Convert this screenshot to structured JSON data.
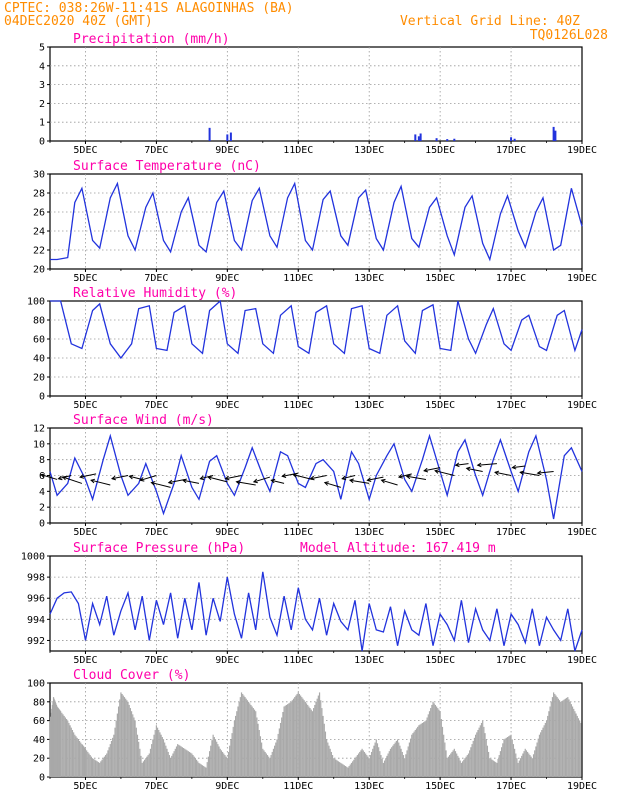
{
  "header": {
    "line1_left": "CPTEC:  038:26W-11:41S  ALAGOINHAS (BA)",
    "line2_left": "04DEC2020 40Z (GMT)",
    "line1_right": "Vertical Grid Line: 40Z",
    "line2_right": "TQ0126L028"
  },
  "colors": {
    "header": "#ff8c00",
    "title": "#ff00aa",
    "line": "#2233dd",
    "cloud": "#a9a9a9",
    "arrow": "#000000"
  },
  "x_ticks": [
    "5DEC",
    "7DEC",
    "9DEC",
    "11DEC",
    "13DEC",
    "15DEC",
    "17DEC",
    "19DEC"
  ],
  "chart_data": [
    {
      "type": "bar",
      "title": "Precipitation (mm/h)",
      "ylim": [
        0,
        5
      ],
      "yticks": [
        "0",
        "1",
        "2",
        "3",
        "4",
        "5"
      ],
      "grid": true,
      "x_start": 4.0,
      "x_end": 19.0,
      "bars": [
        {
          "x": 8.5,
          "value": 0.7
        },
        {
          "x": 9.0,
          "value": 0.35
        },
        {
          "x": 9.1,
          "value": 0.45
        },
        {
          "x": 14.3,
          "value": 0.35
        },
        {
          "x": 14.4,
          "value": 0.25
        },
        {
          "x": 14.45,
          "value": 0.4
        },
        {
          "x": 14.9,
          "value": 0.15
        },
        {
          "x": 15.2,
          "value": 0.1
        },
        {
          "x": 15.4,
          "value": 0.12
        },
        {
          "x": 17.0,
          "value": 0.2
        },
        {
          "x": 17.1,
          "value": 0.12
        },
        {
          "x": 18.2,
          "value": 0.75
        },
        {
          "x": 18.25,
          "value": 0.55
        }
      ]
    },
    {
      "type": "line",
      "title": "Surface Temperature (nC)",
      "ylim": [
        20,
        30
      ],
      "yticks": [
        "20",
        "22",
        "24",
        "26",
        "28",
        "30"
      ],
      "grid": true,
      "x_start": 4.0,
      "x_end": 19.0,
      "x": [
        4.0,
        4.2,
        4.5,
        4.7,
        4.9,
        5.2,
        5.4,
        5.7,
        5.9,
        6.2,
        6.4,
        6.7,
        6.9,
        7.2,
        7.4,
        7.7,
        7.9,
        8.2,
        8.4,
        8.7,
        8.9,
        9.2,
        9.4,
        9.7,
        9.9,
        10.2,
        10.4,
        10.7,
        10.9,
        11.2,
        11.4,
        11.7,
        11.9,
        12.2,
        12.4,
        12.7,
        12.9,
        13.2,
        13.4,
        13.7,
        13.9,
        14.2,
        14.4,
        14.7,
        14.9,
        15.2,
        15.4,
        15.7,
        15.9,
        16.2,
        16.4,
        16.7,
        16.9,
        17.2,
        17.4,
        17.7,
        17.9,
        18.2,
        18.4,
        18.7,
        19.0
      ],
      "y": [
        21.0,
        21.0,
        21.2,
        27.0,
        28.5,
        23.0,
        22.2,
        27.5,
        29.0,
        23.5,
        22.0,
        26.5,
        28.0,
        23.0,
        21.8,
        26.0,
        27.5,
        22.5,
        21.8,
        27.0,
        28.2,
        23.0,
        22.0,
        27.2,
        28.5,
        23.5,
        22.3,
        27.5,
        29.0,
        23.0,
        22.0,
        27.3,
        28.2,
        23.5,
        22.5,
        27.5,
        28.3,
        23.2,
        22.0,
        27.0,
        28.7,
        23.2,
        22.3,
        26.5,
        27.5,
        23.5,
        21.5,
        26.5,
        27.7,
        22.7,
        21.0,
        25.8,
        27.7,
        24.0,
        22.3,
        26.0,
        27.5,
        22.0,
        22.5,
        28.5,
        24.5
      ]
    },
    {
      "type": "line",
      "title": "Relative Humidity (%)",
      "ylim": [
        0,
        100
      ],
      "yticks": [
        "0",
        "20",
        "40",
        "60",
        "80",
        "100"
      ],
      "grid": true,
      "x_start": 4.0,
      "x_end": 19.0,
      "x": [
        4.0,
        4.3,
        4.6,
        4.9,
        5.2,
        5.4,
        5.7,
        6.0,
        6.3,
        6.5,
        6.8,
        7.0,
        7.3,
        7.5,
        7.8,
        8.0,
        8.3,
        8.5,
        8.8,
        9.0,
        9.3,
        9.5,
        9.8,
        10.0,
        10.3,
        10.5,
        10.8,
        11.0,
        11.3,
        11.5,
        11.8,
        12.0,
        12.3,
        12.5,
        12.8,
        13.0,
        13.3,
        13.5,
        13.8,
        14.0,
        14.3,
        14.5,
        14.8,
        15.0,
        15.3,
        15.5,
        15.8,
        16.0,
        16.3,
        16.5,
        16.8,
        17.0,
        17.3,
        17.5,
        17.8,
        18.0,
        18.3,
        18.5,
        18.8,
        19.0
      ],
      "y": [
        100,
        100,
        55,
        50,
        90,
        97,
        55,
        40,
        55,
        92,
        95,
        50,
        48,
        88,
        95,
        55,
        45,
        90,
        100,
        55,
        45,
        90,
        92,
        55,
        45,
        85,
        95,
        52,
        45,
        88,
        95,
        55,
        45,
        92,
        95,
        50,
        45,
        85,
        95,
        58,
        45,
        90,
        96,
        50,
        48,
        100,
        60,
        45,
        75,
        92,
        55,
        48,
        80,
        85,
        52,
        48,
        85,
        90,
        48,
        70
      ]
    },
    {
      "type": "line",
      "title": "Surface Wind (m/s)",
      "ylim": [
        0,
        12
      ],
      "yticks": [
        "0",
        "2",
        "4",
        "6",
        "8",
        "10",
        "12"
      ],
      "grid": true,
      "x_start": 4.0,
      "x_end": 19.0,
      "x": [
        4.0,
        4.2,
        4.5,
        4.7,
        5.0,
        5.2,
        5.5,
        5.7,
        6.0,
        6.2,
        6.5,
        6.7,
        7.0,
        7.2,
        7.5,
        7.7,
        8.0,
        8.2,
        8.5,
        8.7,
        9.0,
        9.2,
        9.5,
        9.7,
        10.0,
        10.2,
        10.5,
        10.7,
        11.0,
        11.2,
        11.5,
        11.7,
        12.0,
        12.2,
        12.5,
        12.7,
        13.0,
        13.2,
        13.5,
        13.7,
        14.0,
        14.2,
        14.5,
        14.7,
        15.0,
        15.2,
        15.5,
        15.7,
        16.0,
        16.2,
        16.5,
        16.7,
        17.0,
        17.2,
        17.5,
        17.7,
        18.0,
        18.2,
        18.5,
        18.7,
        19.0
      ],
      "y": [
        6.5,
        3.5,
        5.0,
        8.2,
        5.5,
        3.0,
        8.0,
        11.0,
        6.0,
        3.5,
        5.0,
        7.5,
        4.0,
        1.2,
        5.0,
        8.5,
        4.5,
        3.0,
        7.8,
        8.5,
        5.0,
        3.5,
        7.0,
        9.5,
        6.0,
        4.0,
        9.0,
        8.5,
        5.0,
        4.5,
        7.5,
        8.0,
        6.5,
        3.0,
        9.0,
        7.5,
        3.0,
        6.0,
        8.5,
        10.0,
        5.5,
        4.0,
        8.0,
        11.0,
        6.5,
        3.5,
        9.0,
        10.5,
        6.0,
        3.5,
        8.0,
        10.5,
        6.5,
        4.0,
        9.0,
        11.0,
        5.5,
        0.5,
        8.5,
        9.5,
        6.5
      ],
      "arrows_x": [
        4.2,
        4.6,
        4.9,
        5.3,
        5.7,
        6.2,
        6.6,
        7.0,
        7.4,
        7.8,
        8.2,
        8.6,
        9.0,
        9.4,
        9.8,
        10.2,
        10.6,
        11.0,
        11.4,
        11.8,
        12.2,
        12.6,
        13.0,
        13.4,
        13.8,
        14.2,
        14.6,
        15.0,
        15.4,
        15.8,
        16.2,
        16.6,
        17.0,
        17.4,
        17.8,
        18.2
      ],
      "arrows_y": [
        5.5,
        6.0,
        5.0,
        6.2,
        4.8,
        6.0,
        5.5,
        6.0,
        4.5,
        5.5,
        5.0,
        6.0,
        5.2,
        6.0,
        4.8,
        5.8,
        5.0,
        6.3,
        5.5,
        6.0,
        4.5,
        6.0,
        5.0,
        5.8,
        4.8,
        6.2,
        5.5,
        7.0,
        6.0,
        7.5,
        6.5,
        7.5,
        6.0,
        7.2,
        6.0,
        6.5
      ],
      "arrows_u": [
        -5,
        -4,
        -6,
        -5,
        -6,
        -5,
        -4,
        -5,
        -6,
        -5,
        -5,
        -4,
        -6,
        -5,
        -6,
        -5,
        -4,
        -5,
        -6,
        -5,
        -5,
        -4,
        -6,
        -5,
        -5,
        -4,
        -6,
        -5,
        -6,
        -4,
        -5,
        -6,
        -5,
        -4,
        -6,
        -5
      ],
      "arrows_v": [
        1.5,
        -1,
        2,
        -1,
        1.5,
        -1,
        1,
        -1.5,
        1.5,
        -1,
        1,
        -1,
        1.5,
        -1,
        1,
        -1.5,
        1,
        -1,
        1.5,
        -1,
        1.5,
        -1,
        1,
        -1,
        1.5,
        -1,
        1,
        -1,
        1.5,
        -0.5,
        1,
        -0.5,
        1,
        -0.5,
        1,
        -0.5
      ]
    },
    {
      "type": "line",
      "title": "Surface Pressure (hPa)",
      "annotation": "Model Altitude: 167.419 m",
      "ylim": [
        991,
        1000
      ],
      "yticks": [
        "992",
        "994",
        "996",
        "998",
        "1000"
      ],
      "ytick_values": [
        992,
        994,
        996,
        998,
        1000
      ],
      "grid": true,
      "x_start": 4.0,
      "x_end": 19.0,
      "x": [
        4.0,
        4.2,
        4.4,
        4.6,
        4.8,
        5.0,
        5.2,
        5.4,
        5.6,
        5.8,
        6.0,
        6.2,
        6.4,
        6.6,
        6.8,
        7.0,
        7.2,
        7.4,
        7.6,
        7.8,
        8.0,
        8.2,
        8.4,
        8.6,
        8.8,
        9.0,
        9.2,
        9.4,
        9.6,
        9.8,
        10.0,
        10.2,
        10.4,
        10.6,
        10.8,
        11.0,
        11.2,
        11.4,
        11.6,
        11.8,
        12.0,
        12.2,
        12.4,
        12.6,
        12.8,
        13.0,
        13.2,
        13.4,
        13.6,
        13.8,
        14.0,
        14.2,
        14.4,
        14.6,
        14.8,
        15.0,
        15.2,
        15.4,
        15.6,
        15.8,
        16.0,
        16.2,
        16.4,
        16.6,
        16.8,
        17.0,
        17.2,
        17.4,
        17.6,
        17.8,
        18.0,
        18.2,
        18.4,
        18.6,
        18.8,
        19.0
      ],
      "y": [
        994.5,
        996.0,
        996.5,
        996.6,
        995.5,
        992.0,
        995.5,
        993.5,
        996.2,
        992.5,
        994.8,
        996.5,
        993.0,
        996.2,
        992.0,
        995.8,
        993.5,
        996.5,
        992.2,
        996.0,
        993.0,
        997.5,
        992.5,
        996.0,
        993.8,
        998.0,
        994.5,
        992.2,
        996.5,
        993.0,
        998.5,
        994.2,
        992.5,
        996.2,
        993.0,
        997.0,
        994.0,
        993.0,
        996.0,
        992.5,
        995.5,
        993.8,
        993.0,
        995.8,
        991.0,
        995.5,
        993.0,
        992.8,
        995.2,
        991.5,
        994.8,
        993.0,
        992.5,
        995.5,
        991.5,
        994.5,
        993.5,
        992.0,
        995.8,
        991.8,
        995.0,
        993.0,
        992.0,
        995.0,
        991.5,
        994.5,
        993.5,
        991.8,
        995.0,
        991.5,
        994.2,
        993.0,
        992.0,
        995.0,
        991.0,
        993.0
      ]
    },
    {
      "type": "area",
      "title": "Cloud Cover (%)",
      "ylim": [
        0,
        100
      ],
      "yticks": [
        "0",
        "20",
        "40",
        "60",
        "80",
        "100"
      ],
      "grid": true,
      "x_start": 4.0,
      "x_end": 19.0,
      "x": [
        4.0,
        4.1,
        4.2,
        4.3,
        4.5,
        4.7,
        4.9,
        5.0,
        5.2,
        5.4,
        5.6,
        5.8,
        6.0,
        6.2,
        6.4,
        6.6,
        6.8,
        7.0,
        7.2,
        7.4,
        7.6,
        7.8,
        8.0,
        8.2,
        8.4,
        8.6,
        8.8,
        9.0,
        9.2,
        9.4,
        9.6,
        9.8,
        10.0,
        10.2,
        10.4,
        10.6,
        10.8,
        11.0,
        11.2,
        11.4,
        11.6,
        11.8,
        12.0,
        12.2,
        12.4,
        12.6,
        12.8,
        13.0,
        13.2,
        13.4,
        13.6,
        13.8,
        14.0,
        14.2,
        14.4,
        14.6,
        14.8,
        15.0,
        15.2,
        15.4,
        15.6,
        15.8,
        16.0,
        16.2,
        16.4,
        16.6,
        16.8,
        17.0,
        17.2,
        17.4,
        17.6,
        17.8,
        18.0,
        18.2,
        18.4,
        18.6,
        18.8,
        19.0
      ],
      "y": [
        60,
        85,
        75,
        70,
        60,
        45,
        35,
        30,
        20,
        15,
        25,
        45,
        90,
        80,
        60,
        15,
        25,
        55,
        40,
        20,
        35,
        30,
        25,
        15,
        10,
        45,
        30,
        20,
        60,
        90,
        80,
        70,
        30,
        20,
        40,
        75,
        80,
        90,
        80,
        70,
        90,
        40,
        20,
        15,
        10,
        20,
        30,
        20,
        40,
        15,
        30,
        40,
        20,
        45,
        55,
        60,
        80,
        70,
        20,
        30,
        15,
        25,
        45,
        60,
        20,
        15,
        40,
        45,
        15,
        30,
        20,
        45,
        60,
        90,
        80,
        85,
        70,
        55
      ]
    }
  ]
}
